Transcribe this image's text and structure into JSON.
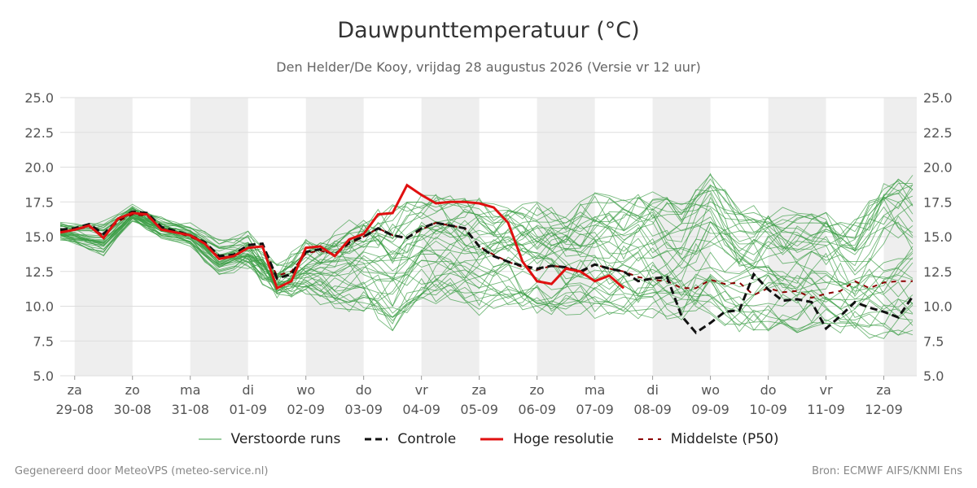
{
  "header": {
    "title": "Dauwpunttemperatuur (°C)",
    "subtitle": "Den Helder/De Kooy, vrijdag 28 augustus 2026 (Versie vr 12 uur)"
  },
  "legend": {
    "ensemble": "Verstoorde runs",
    "control": "Controle",
    "hires": "Hoge resolutie",
    "median": "Middelste (P50)"
  },
  "footer": {
    "left": "Gegenereerd door MeteoVPS (meteo-service.nl)",
    "right": "Bron: ECMWF AIFS/KNMI Ens"
  },
  "colors": {
    "ensemble": "#3a9d45",
    "control": "#111111",
    "hires": "#e01010",
    "median": "#8b0000",
    "weekend_band": "#eeeeee",
    "grid": "#dddddd"
  },
  "chart_data": {
    "type": "line",
    "title": "Dauwpunttemperatuur (°C)",
    "ylim": [
      5.0,
      25.0
    ],
    "yticks": [
      "5.0",
      "7.5",
      "10.0",
      "12.5",
      "15.0",
      "17.5",
      "20.0",
      "22.5",
      "25.0"
    ],
    "xlim": [
      -0.25,
      14.57
    ],
    "day_labels": [
      {
        "day": "za",
        "date": "29-08"
      },
      {
        "day": "zo",
        "date": "30-08"
      },
      {
        "day": "ma",
        "date": "31-08"
      },
      {
        "day": "di",
        "date": "01-09"
      },
      {
        "day": "wo",
        "date": "02-09"
      },
      {
        "day": "do",
        "date": "03-09"
      },
      {
        "day": "vr",
        "date": "04-09"
      },
      {
        "day": "za",
        "date": "05-09"
      },
      {
        "day": "zo",
        "date": "06-09"
      },
      {
        "day": "ma",
        "date": "07-09"
      },
      {
        "day": "di",
        "date": "08-09"
      },
      {
        "day": "wo",
        "date": "09-09"
      },
      {
        "day": "do",
        "date": "10-09"
      },
      {
        "day": "vr",
        "date": "11-09"
      },
      {
        "day": "za",
        "date": "12-09"
      }
    ],
    "shaded_bands": [
      [
        0,
        1
      ],
      [
        2,
        3
      ],
      [
        4,
        5
      ],
      [
        6,
        7
      ],
      [
        8,
        9
      ],
      [
        10,
        11
      ],
      [
        12,
        13
      ],
      [
        14,
        14.57
      ]
    ],
    "hires": {
      "name": "Hoge resolutie",
      "x": [
        -0.25,
        0.0,
        0.25,
        0.5,
        0.75,
        1.0,
        1.25,
        1.5,
        1.75,
        2.0,
        2.25,
        2.5,
        2.75,
        3.0,
        3.25,
        3.5,
        3.75,
        4.0,
        4.25,
        4.5,
        4.75,
        5.0,
        5.25,
        5.5,
        5.75,
        6.0,
        6.25,
        6.5,
        6.75,
        7.0,
        7.25,
        7.5,
        7.75,
        8.0,
        8.25,
        8.5,
        8.75,
        9.0,
        9.25,
        9.5
      ],
      "y": [
        15.3,
        15.5,
        15.8,
        14.9,
        16.3,
        16.7,
        16.6,
        15.5,
        15.3,
        15.1,
        14.5,
        13.4,
        13.6,
        14.2,
        14.3,
        11.3,
        11.8,
        14.2,
        14.3,
        13.6,
        14.8,
        15.2,
        16.6,
        16.7,
        18.7,
        18.0,
        17.4,
        17.5,
        17.5,
        17.4,
        17.1,
        16.0,
        13.2,
        11.8,
        11.6,
        12.7,
        12.5,
        11.8,
        12.2,
        11.3
      ]
    },
    "control": {
      "name": "Controle",
      "x": [
        -0.25,
        0.0,
        0.25,
        0.5,
        0.75,
        1.0,
        1.25,
        1.5,
        1.75,
        2.0,
        2.25,
        2.5,
        2.75,
        3.0,
        3.25,
        3.5,
        3.75,
        4.0,
        4.25,
        4.5,
        4.75,
        5.0,
        5.25,
        5.5,
        5.75,
        6.0,
        6.25,
        6.5,
        6.75,
        7.0,
        7.25,
        7.5,
        7.75,
        8.0,
        8.25,
        8.5,
        8.75,
        9.0,
        9.25,
        9.5,
        9.75,
        10.0,
        10.25,
        10.5,
        10.75,
        11.0,
        11.25,
        11.5,
        11.75,
        12.0,
        12.25,
        12.5,
        12.75,
        13.0,
        13.25,
        13.5,
        13.75,
        14.0,
        14.25,
        14.5
      ],
      "y": [
        15.5,
        15.6,
        15.9,
        15.2,
        16.2,
        16.8,
        16.7,
        15.7,
        15.4,
        15.1,
        14.6,
        13.6,
        13.7,
        14.4,
        14.5,
        12.0,
        12.3,
        13.9,
        14.1,
        13.7,
        14.6,
        15.0,
        15.6,
        15.1,
        14.9,
        15.6,
        16.0,
        15.8,
        15.6,
        14.3,
        13.6,
        13.2,
        12.9,
        12.7,
        12.9,
        12.8,
        12.5,
        13.0,
        12.7,
        12.5,
        11.8,
        12.0,
        12.1,
        9.3,
        8.1,
        8.8,
        9.6,
        9.7,
        12.3,
        11.2,
        10.4,
        10.5,
        10.3,
        8.4,
        9.3,
        10.3,
        9.9,
        9.6,
        9.2,
        10.7
      ]
    },
    "median": {
      "name": "Middelste (P50)",
      "x": [
        -0.25,
        0.0,
        0.25,
        0.5,
        0.75,
        1.0,
        1.25,
        1.5,
        1.75,
        2.0,
        2.25,
        2.5,
        2.75,
        3.0,
        3.25,
        3.5,
        3.75,
        4.0,
        4.25,
        4.5,
        4.75,
        5.0,
        5.25,
        5.5,
        5.75,
        6.0,
        6.25,
        6.5,
        6.75,
        7.0,
        7.25,
        7.5,
        7.75,
        8.0,
        8.25,
        8.5,
        8.75,
        9.0,
        9.25,
        9.5,
        9.75,
        10.0,
        10.25,
        10.5,
        10.75,
        11.0,
        11.25,
        11.5,
        11.75,
        12.0,
        12.25,
        12.5,
        12.75,
        13.0,
        13.25,
        13.5,
        13.75,
        14.0,
        14.25,
        14.5
      ],
      "y": [
        15.4,
        15.5,
        15.7,
        15.1,
        16.1,
        16.6,
        16.5,
        15.6,
        15.3,
        15.0,
        14.5,
        13.5,
        13.6,
        14.2,
        14.3,
        12.2,
        12.5,
        13.8,
        14.0,
        13.7,
        14.5,
        15.0,
        15.6,
        15.1,
        14.9,
        15.5,
        16.0,
        15.8,
        15.6,
        14.3,
        13.7,
        13.2,
        12.8,
        12.6,
        12.9,
        12.8,
        12.4,
        13.0,
        12.7,
        12.5,
        12.1,
        11.9,
        11.8,
        11.3,
        11.3,
        11.9,
        11.6,
        11.7,
        10.8,
        11.3,
        11.0,
        11.1,
        10.6,
        10.9,
        11.1,
        11.8,
        11.3,
        11.7,
        11.8,
        11.8
      ]
    },
    "ensemble_note_count": 40,
    "ensemble_band": {
      "x": [
        -0.25,
        0.5,
        1.0,
        1.5,
        2.0,
        2.5,
        3.0,
        3.5,
        4.0,
        4.5,
        5.0,
        5.5,
        6.0,
        6.5,
        7.0,
        7.5,
        8.0,
        8.5,
        9.0,
        9.5,
        10.0,
        10.5,
        11.0,
        11.5,
        12.0,
        12.5,
        13.0,
        13.5,
        14.0,
        14.5
      ],
      "low": [
        14.6,
        13.3,
        15.9,
        14.8,
        14.2,
        11.6,
        12.5,
        10.6,
        10.5,
        9.2,
        8.7,
        7.0,
        9.2,
        9.5,
        8.5,
        9.5,
        8.6,
        8.6,
        8.0,
        7.8,
        8.1,
        7.3,
        7.5,
        7.0,
        7.2,
        7.0,
        7.1,
        6.5,
        6.0,
        6.2
      ],
      "high": [
        16.2,
        16.5,
        17.4,
        16.5,
        16.1,
        15.3,
        15.4,
        13.0,
        14.8,
        16.0,
        17.5,
        18.5,
        19.2,
        18.7,
        18.6,
        18.2,
        18.3,
        17.9,
        19.7,
        19.3,
        19.3,
        18.5,
        20.9,
        18.4,
        18.3,
        18.0,
        17.9,
        17.5,
        20.7,
        21.3
      ]
    }
  }
}
